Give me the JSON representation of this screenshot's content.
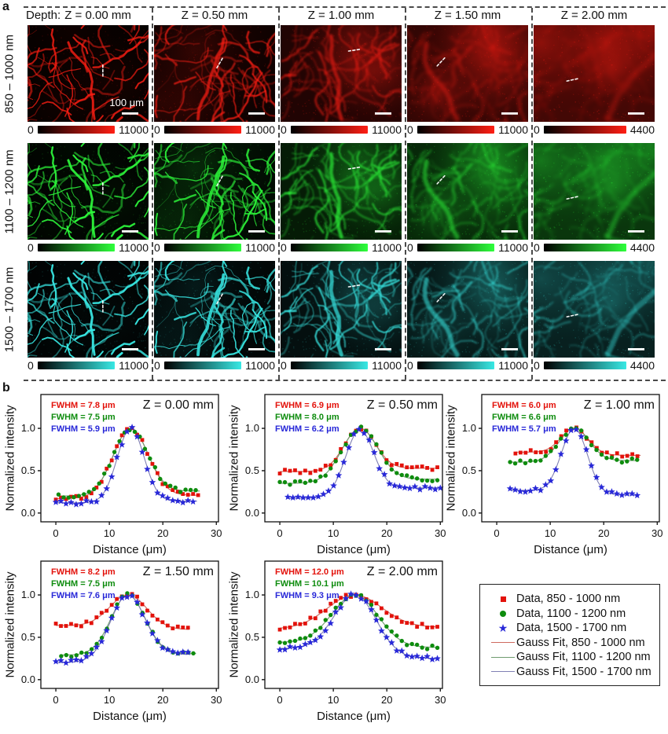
{
  "panel_a": {
    "label": "a",
    "header_prefix": "Depth:",
    "depth_labels": [
      "Z = 0.00 mm",
      "Z = 0.50 mm",
      "Z = 1.00 mm",
      "Z = 1.50 mm",
      "Z = 2.00 mm"
    ],
    "colorbar_min": "0",
    "scalebar_label": "100 μm",
    "rows": [
      {
        "band_label": "850 – 1000 nm",
        "color": "#ff1e14",
        "colorbar_maxes": [
          "11000",
          "11000",
          "11000",
          "11000",
          "4400"
        ]
      },
      {
        "band_label": "1100 – 1200 nm",
        "color": "#2eff3c",
        "colorbar_maxes": [
          "11000",
          "11000",
          "11000",
          "11000",
          "4400"
        ]
      },
      {
        "band_label": "1500 – 1700 nm",
        "color": "#38e8e4",
        "colorbar_maxes": [
          "11000",
          "11000",
          "11000",
          "11000",
          "4400"
        ]
      }
    ]
  },
  "panel_b": {
    "label": "b"
  },
  "chart_data": {
    "type": "scatter",
    "subtype": "intensity line profiles with Gaussian fits",
    "xlabel": "Distance (μm)",
    "ylabel": "Normalized intensity",
    "xticks": [
      "0",
      "10",
      "20",
      "30"
    ],
    "yticks": [
      "0.0",
      "0.5",
      "1.0"
    ],
    "xtick_values": [
      0,
      10,
      20,
      30
    ],
    "ytick_values": [
      0.0,
      0.5,
      1.0
    ],
    "xlim": [
      -2.8,
      30.4
    ],
    "ylim": [
      -0.104,
      1.4
    ],
    "data_colors": [
      "#e3120b",
      "#0e8c0e",
      "#2828d8"
    ],
    "fit_colors": [
      "#cf6a5f",
      "#6f9b6f",
      "#8080b4"
    ],
    "plots": [
      {
        "title": "Z = 0.00 mm",
        "fwhm_labels": [
          "FWHM = 7.8 μm",
          "FWHM = 7.5 μm",
          "FWHM = 5.9 μm"
        ],
        "series": [
          {
            "name": "Data, 850 - 1000 nm",
            "marker": "square",
            "center": 14.0,
            "fwhm_um": 7.8,
            "base_left": 0.17,
            "base_right": 0.21,
            "peak": 1.0,
            "x_start": 0,
            "x_end": 27
          },
          {
            "name": "Data, 1100 - 1200 nm",
            "marker": "circle",
            "center": 14.0,
            "fwhm_um": 7.5,
            "base_left": 0.2,
            "base_right": 0.26,
            "peak": 1.0,
            "x_start": 0.5,
            "x_end": 27
          },
          {
            "name": "Data, 1500 - 1700 nm",
            "marker": "star",
            "center": 14.0,
            "fwhm_um": 5.9,
            "base_left": 0.12,
            "base_right": 0.14,
            "peak": 1.0,
            "x_start": 0,
            "x_end": 26.5
          }
        ]
      },
      {
        "title": "Z = 0.50 mm",
        "fwhm_labels": [
          "FWHM = 6.9 μm",
          "FWHM = 8.0 μm",
          "FWHM = 6.2 μm"
        ],
        "series": [
          {
            "name": "Data, 850 - 1000 nm",
            "marker": "square",
            "center": 15.0,
            "fwhm_um": 6.9,
            "base_left": 0.49,
            "base_right": 0.53,
            "peak": 1.0,
            "x_start": 0,
            "x_end": 30
          },
          {
            "name": "Data, 1100 - 1200 nm",
            "marker": "circle",
            "center": 15.0,
            "fwhm_um": 8.0,
            "base_left": 0.35,
            "base_right": 0.4,
            "peak": 1.0,
            "x_start": 0,
            "x_end": 30
          },
          {
            "name": "Data, 1500 - 1700 nm",
            "marker": "star",
            "center": 15.0,
            "fwhm_um": 6.2,
            "base_left": 0.17,
            "base_right": 0.3,
            "peak": 0.98,
            "x_start": 1.5,
            "x_end": 30
          }
        ]
      },
      {
        "title": "Z = 1.00 mm",
        "fwhm_labels": [
          "FWHM = 6.0 μm",
          "FWHM = 6.6 μm",
          "FWHM = 5.7 μm"
        ],
        "series": [
          {
            "name": "Data, 850 - 1000 nm",
            "marker": "square",
            "center": 14.5,
            "fwhm_um": 6.0,
            "base_left": 0.72,
            "base_right": 0.68,
            "peak": 1.0,
            "x_start": 3.5,
            "x_end": 27
          },
          {
            "name": "Data, 1100 - 1200 nm",
            "marker": "circle",
            "center": 14.5,
            "fwhm_um": 6.6,
            "base_left": 0.6,
            "base_right": 0.62,
            "peak": 1.0,
            "x_start": 2.5,
            "x_end": 26.5
          },
          {
            "name": "Data, 1500 - 1700 nm",
            "marker": "star",
            "center": 14.5,
            "fwhm_um": 5.7,
            "base_left": 0.27,
            "base_right": 0.21,
            "peak": 1.0,
            "x_start": 2.5,
            "x_end": 26.5
          }
        ]
      },
      {
        "title": "Z = 1.50 mm",
        "fwhm_labels": [
          "FWHM = 8.2 μm",
          "FWHM = 7.5 μm",
          "FWHM = 7.6 μm"
        ],
        "series": [
          {
            "name": "Data, 850 - 1000 nm",
            "marker": "square",
            "center": 13.5,
            "fwhm_um": 8.2,
            "base_left": 0.64,
            "base_right": 0.59,
            "peak": 1.0,
            "x_start": 0,
            "x_end": 25
          },
          {
            "name": "Data, 1100 - 1200 nm",
            "marker": "circle",
            "center": 13.5,
            "fwhm_um": 7.5,
            "base_left": 0.29,
            "base_right": 0.31,
            "peak": 1.0,
            "x_start": 1,
            "x_end": 26.5
          },
          {
            "name": "Data, 1500 - 1700 nm",
            "marker": "star",
            "center": 13.5,
            "fwhm_um": 7.6,
            "base_left": 0.2,
            "base_right": 0.3,
            "peak": 1.0,
            "x_start": 0,
            "x_end": 25.5
          }
        ]
      },
      {
        "title": "Z = 2.00 mm",
        "fwhm_labels": [
          "FWHM = 12.0 μm",
          "FWHM = 10.1 μm",
          "FWHM = 9.3 μm"
        ],
        "series": [
          {
            "name": "Data, 850 - 1000 nm",
            "marker": "square",
            "center": 14.0,
            "fwhm_um": 12.0,
            "base_left": 0.6,
            "base_right": 0.62,
            "peak": 1.0,
            "x_start": 0,
            "x_end": 29.5
          },
          {
            "name": "Data, 1100 - 1200 nm",
            "marker": "circle",
            "center": 14.0,
            "fwhm_um": 10.1,
            "base_left": 0.44,
            "base_right": 0.38,
            "peak": 1.0,
            "x_start": 0,
            "x_end": 29.5
          },
          {
            "name": "Data, 1500 - 1700 nm",
            "marker": "star",
            "center": 14.0,
            "fwhm_um": 9.3,
            "base_left": 0.37,
            "base_right": 0.25,
            "peak": 1.0,
            "x_start": 0,
            "x_end": 29.5
          }
        ]
      }
    ],
    "legend": [
      {
        "label": "Data, 850 - 1000 nm",
        "marker": "square",
        "color": "#e3120b"
      },
      {
        "label": "Data, 1100 - 1200 nm",
        "marker": "circle",
        "color": "#0e8c0e"
      },
      {
        "label": "Data, 1500 - 1700 nm",
        "marker": "star",
        "color": "#2828d8"
      },
      {
        "label": "Gauss Fit, 850 - 1000 nm",
        "marker": "line",
        "color": "#cf6a5f"
      },
      {
        "label": "Gauss Fit, 1100 - 1200 nm",
        "marker": "line",
        "color": "#6f9b6f"
      },
      {
        "label": "Gauss Fit, 1500 - 1700 nm",
        "marker": "line",
        "color": "#8080b4"
      }
    ]
  }
}
